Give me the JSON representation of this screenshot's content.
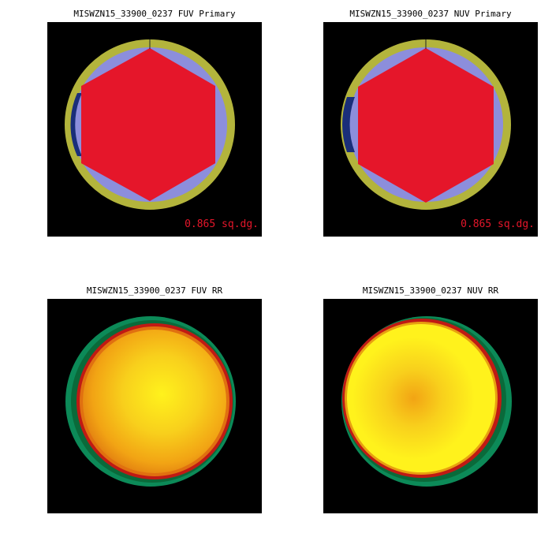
{
  "panels": [
    {
      "title": "MISWZN15_33900_0237 FUV Primary",
      "kind": "primary",
      "area_label": "0.865 sq.dg."
    },
    {
      "title": "MISWZN15_33900_0237 NUV Primary",
      "kind": "primary",
      "area_label": "0.865 sq.dg."
    },
    {
      "title": "MISWZN15_33900_0237 FUV RR",
      "kind": "rr",
      "area_label": ""
    },
    {
      "title": "MISWZN15_33900_0237 NUV RR",
      "kind": "rr",
      "area_label": ""
    }
  ],
  "colors": {
    "background": "#000000",
    "ring_yellow": "#b3b43c",
    "field_blue": "#8c8edc",
    "field_dark_blue": "#1a2e7a",
    "hexagon_red": "#e5162a",
    "label_red": "#e5162a",
    "rr_edge_green": "#0c8a58",
    "rr_rim_red": "#c01a14",
    "rr_core_yellow": "#fff21c",
    "rr_mid_orange": "#f2a414"
  }
}
